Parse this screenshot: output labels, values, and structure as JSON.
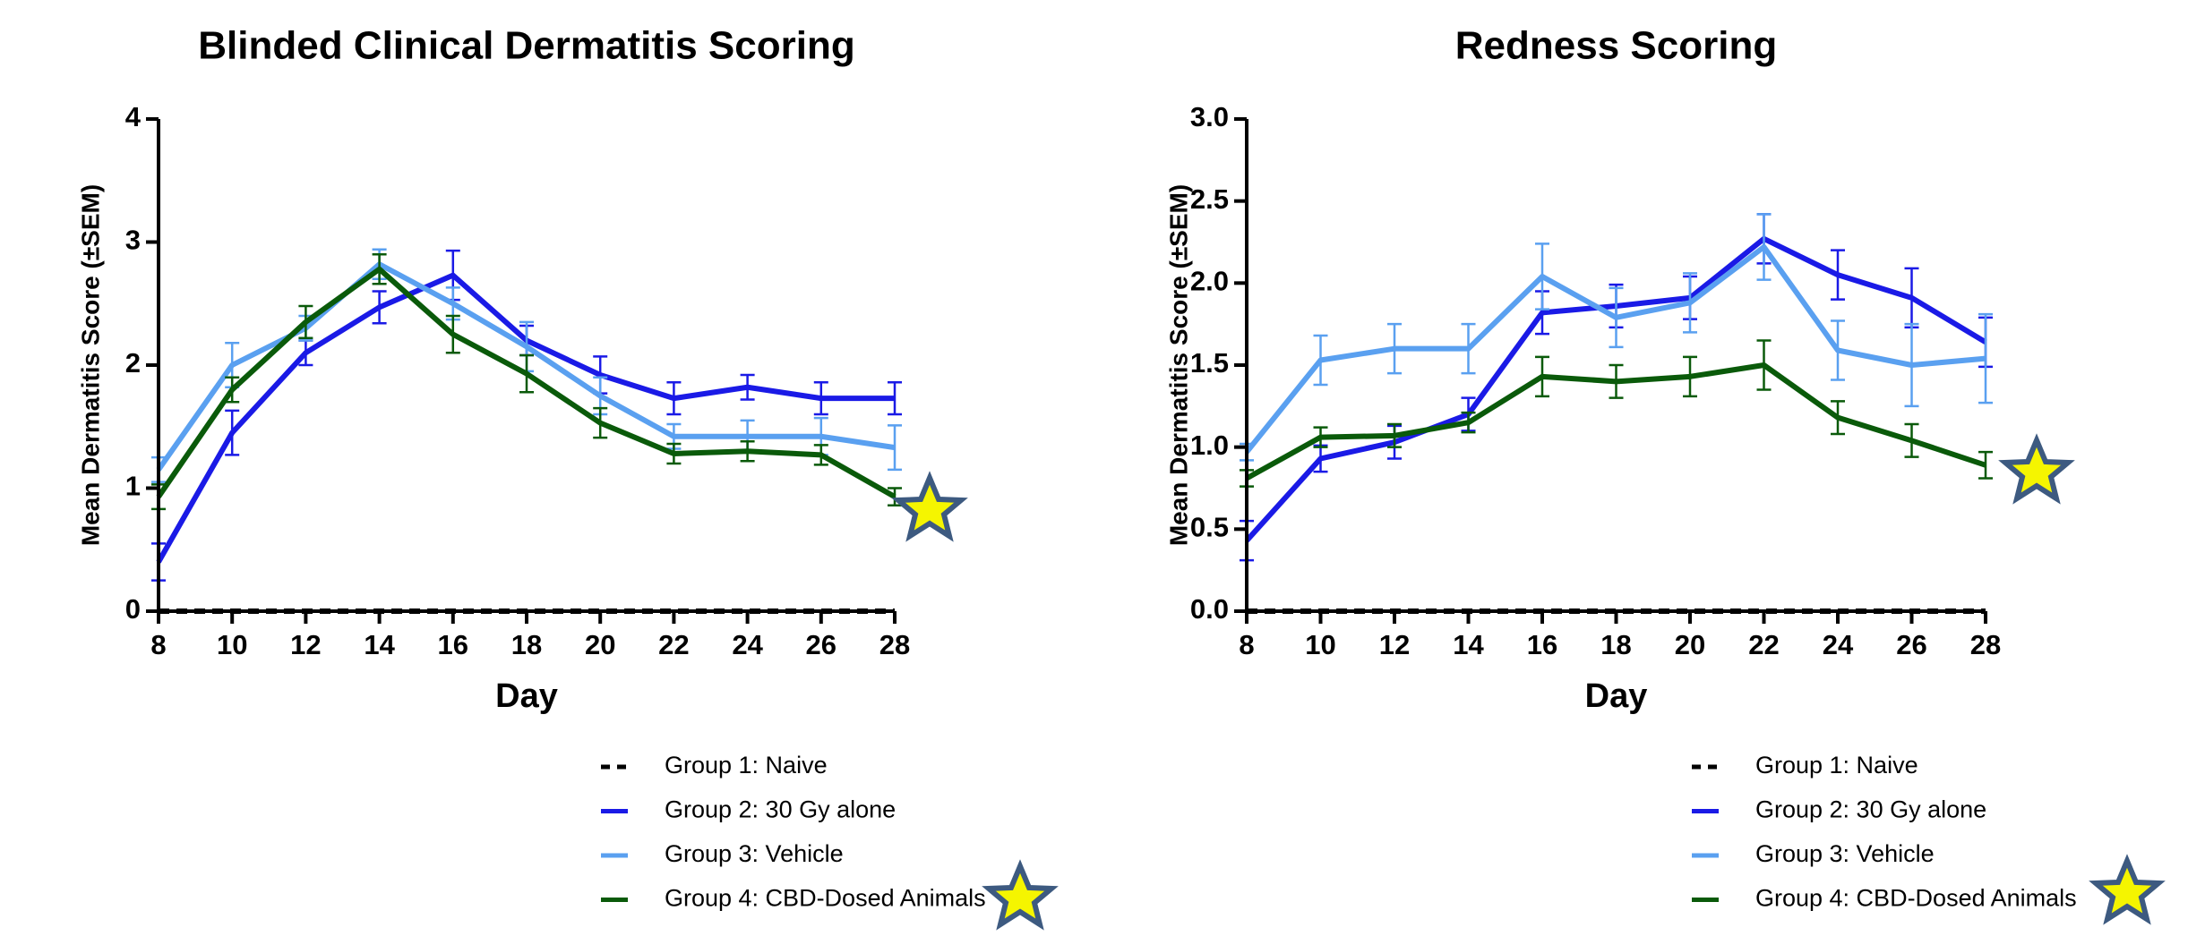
{
  "chart_data": [
    {
      "type": "line",
      "title": "Blinded Clinical Dermatitis Scoring",
      "x_label": "Day",
      "y_label": "Mean Dermatitis Score (±SEM)",
      "x": [
        8,
        10,
        12,
        14,
        16,
        18,
        20,
        22,
        24,
        26,
        28
      ],
      "xlim": [
        8,
        28
      ],
      "xticks": [
        8,
        10,
        12,
        14,
        16,
        18,
        20,
        22,
        24,
        26,
        28
      ],
      "ylim": [
        0,
        4
      ],
      "yticks": [
        0,
        1,
        2,
        3,
        4
      ],
      "legend": "bottom",
      "series": [
        {
          "name": "Group 1: Naive",
          "color": "#000000",
          "linestyle": "dashed",
          "values": [
            0,
            0,
            0,
            0,
            0,
            0,
            0,
            0,
            0,
            0,
            0
          ]
        },
        {
          "name": "Group 2: 30 Gy alone",
          "color": "#1a1ae6",
          "values": [
            0.4,
            1.45,
            2.1,
            2.47,
            2.73,
            2.2,
            1.92,
            1.73,
            1.82,
            1.73,
            1.73
          ],
          "errors": [
            0.15,
            0.18,
            0.1,
            0.13,
            0.2,
            0.12,
            0.15,
            0.13,
            0.1,
            0.13,
            0.13
          ]
        },
        {
          "name": "Group 3: Vehicle",
          "color": "#5aa0f0",
          "values": [
            1.15,
            2.0,
            2.3,
            2.82,
            2.5,
            2.15,
            1.75,
            1.42,
            1.42,
            1.42,
            1.33
          ],
          "errors": [
            0.1,
            0.18,
            0.1,
            0.12,
            0.13,
            0.2,
            0.15,
            0.1,
            0.13,
            0.15,
            0.18
          ]
        },
        {
          "name": "Group 4: CBD-Dosed Animals",
          "color": "#0a5a0a",
          "values": [
            0.93,
            1.8,
            2.35,
            2.78,
            2.25,
            1.93,
            1.53,
            1.28,
            1.3,
            1.27,
            0.93
          ],
          "errors": [
            0.1,
            0.1,
            0.13,
            0.12,
            0.15,
            0.15,
            0.12,
            0.08,
            0.08,
            0.08,
            0.07
          ]
        }
      ]
    },
    {
      "type": "line",
      "title": "Redness Scoring",
      "x_label": "Day",
      "y_label": "Mean Dermatitis Score (±SEM)",
      "x": [
        8,
        10,
        12,
        14,
        16,
        18,
        20,
        22,
        24,
        26,
        28
      ],
      "xlim": [
        8,
        28
      ],
      "xticks": [
        8,
        10,
        12,
        14,
        16,
        18,
        20,
        22,
        24,
        26,
        28
      ],
      "ylim": [
        0,
        3
      ],
      "yticks": [
        {
          "value": 0,
          "label": "0.0"
        },
        {
          "value": 0.5,
          "label": "0.5"
        },
        {
          "value": 1,
          "label": "1.0"
        },
        {
          "value": 1.5,
          "label": "1.5"
        },
        {
          "value": 2,
          "label": "2.0"
        },
        {
          "value": 2.5,
          "label": "2.5"
        },
        {
          "value": 3,
          "label": "3.0"
        }
      ],
      "legend": "bottom",
      "series": [
        {
          "name": "Group 1: Naive",
          "color": "#000000",
          "linestyle": "dashed",
          "values": [
            0,
            0,
            0,
            0,
            0,
            0,
            0,
            0,
            0,
            0,
            0
          ]
        },
        {
          "name": "Group 2: 30 Gy alone",
          "color": "#1a1ae6",
          "values": [
            0.43,
            0.93,
            1.03,
            1.2,
            1.82,
            1.86,
            1.91,
            2.27,
            2.05,
            1.91,
            1.64
          ],
          "errors": [
            0.12,
            0.08,
            0.1,
            0.1,
            0.13,
            0.13,
            0.13,
            0.15,
            0.15,
            0.18,
            0.15
          ]
        },
        {
          "name": "Group 3: Vehicle",
          "color": "#5aa0f0",
          "values": [
            0.97,
            1.53,
            1.6,
            1.6,
            2.04,
            1.79,
            1.88,
            2.22,
            1.59,
            1.5,
            1.54
          ],
          "errors": [
            0.05,
            0.15,
            0.15,
            0.15,
            0.2,
            0.18,
            0.18,
            0.2,
            0.18,
            0.25,
            0.27
          ]
        },
        {
          "name": "Group 4: CBD-Dosed Animals",
          "color": "#0a5a0a",
          "values": [
            0.81,
            1.06,
            1.07,
            1.15,
            1.43,
            1.4,
            1.43,
            1.5,
            1.18,
            1.04,
            0.89
          ],
          "errors": [
            0.05,
            0.06,
            0.07,
            0.06,
            0.12,
            0.1,
            0.12,
            0.15,
            0.1,
            0.1,
            0.08
          ]
        }
      ]
    }
  ]
}
